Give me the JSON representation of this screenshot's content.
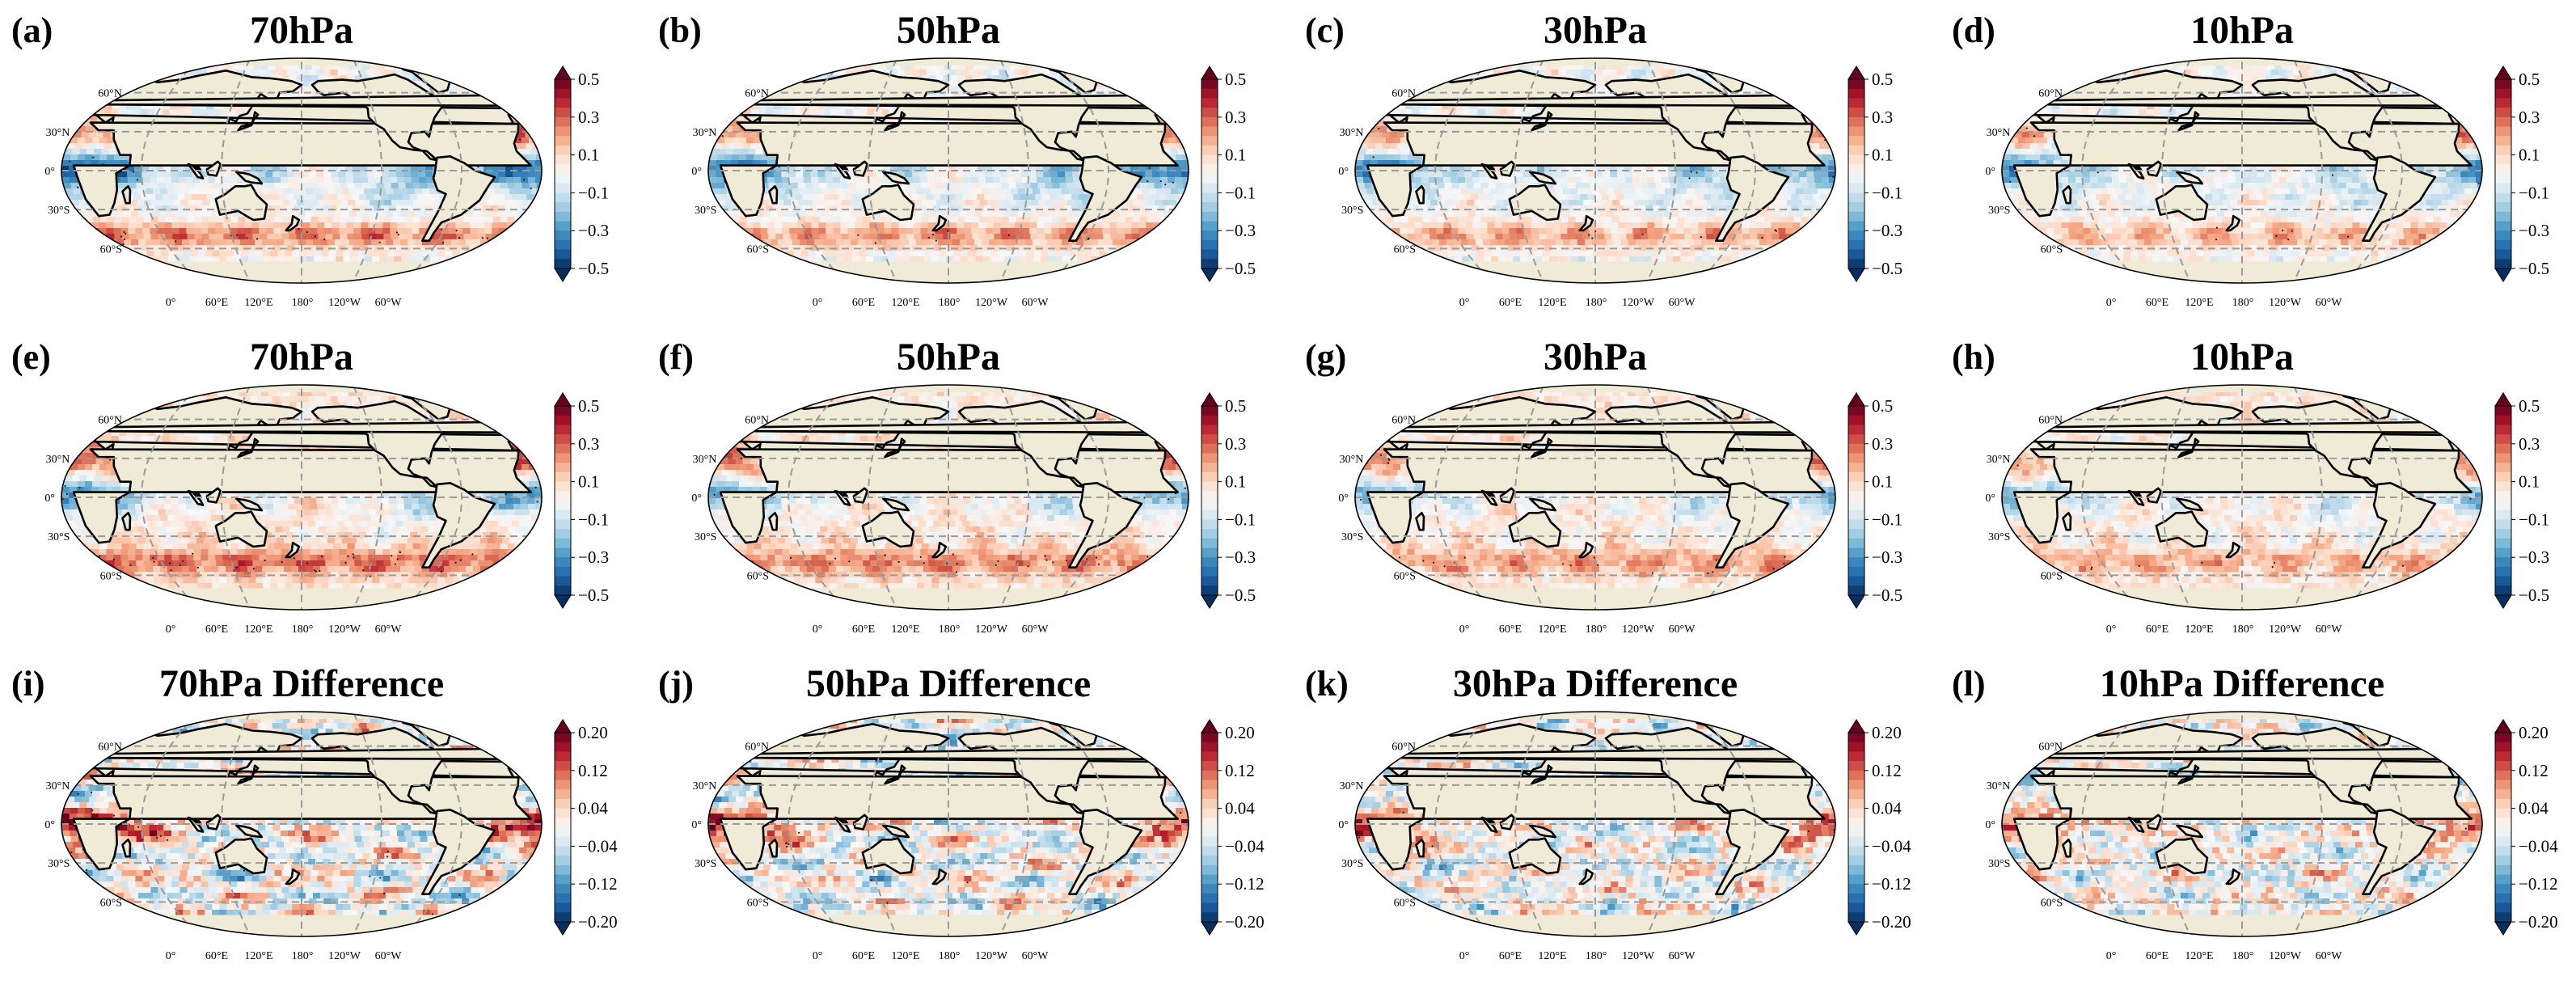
{
  "figure": {
    "colormap": {
      "name": "RdBu_r",
      "stops": [
        "#053061",
        "#2166ac",
        "#4393c3",
        "#92c5de",
        "#d1e5f0",
        "#f7f7f7",
        "#fddbc7",
        "#f4a582",
        "#d6604d",
        "#b2182b",
        "#67001f"
      ]
    },
    "land_color": "#efebd6",
    "ocean_background": "#f7f7f7",
    "graticule_color": "#9a9a9a",
    "lat_labels": [
      "60°N",
      "30°N",
      "0°",
      "30°S",
      "60°S"
    ],
    "lon_labels": [
      "0°",
      "60°E",
      "120°E",
      "180°",
      "120°W",
      "60°W"
    ]
  },
  "chart_data": [
    {
      "letter": "(a)",
      "title": "70hPa",
      "type": "heatmap",
      "colorbar": {
        "ticks": [
          "0.5",
          "0.3",
          "0.1",
          "−0.1",
          "−0.3",
          "−0.5"
        ],
        "range": [
          -0.5,
          0.5
        ]
      }
    },
    {
      "letter": "(b)",
      "title": "50hPa",
      "type": "heatmap",
      "colorbar": {
        "ticks": [
          "0.5",
          "0.3",
          "0.1",
          "−0.1",
          "−0.3",
          "−0.5"
        ],
        "range": [
          -0.5,
          0.5
        ]
      }
    },
    {
      "letter": "(c)",
      "title": "30hPa",
      "type": "heatmap",
      "colorbar": {
        "ticks": [
          "0.5",
          "0.3",
          "0.1",
          "−0.1",
          "−0.3",
          "−0.5"
        ],
        "range": [
          -0.5,
          0.5
        ]
      }
    },
    {
      "letter": "(d)",
      "title": "10hPa",
      "type": "heatmap",
      "colorbar": {
        "ticks": [
          "0.5",
          "0.3",
          "0.1",
          "−0.1",
          "−0.3",
          "−0.5"
        ],
        "range": [
          -0.5,
          0.5
        ]
      }
    },
    {
      "letter": "(e)",
      "title": "70hPa",
      "type": "heatmap",
      "colorbar": {
        "ticks": [
          "0.5",
          "0.3",
          "0.1",
          "−0.1",
          "−0.3",
          "−0.5"
        ],
        "range": [
          -0.5,
          0.5
        ]
      }
    },
    {
      "letter": "(f)",
      "title": "50hPa",
      "type": "heatmap",
      "colorbar": {
        "ticks": [
          "0.5",
          "0.3",
          "0.1",
          "−0.1",
          "−0.3",
          "−0.5"
        ],
        "range": [
          -0.5,
          0.5
        ]
      }
    },
    {
      "letter": "(g)",
      "title": "30hPa",
      "type": "heatmap",
      "colorbar": {
        "ticks": [
          "0.5",
          "0.3",
          "0.1",
          "−0.1",
          "−0.3",
          "−0.5"
        ],
        "range": [
          -0.5,
          0.5
        ]
      }
    },
    {
      "letter": "(h)",
      "title": "10hPa",
      "type": "heatmap",
      "colorbar": {
        "ticks": [
          "0.5",
          "0.3",
          "0.1",
          "−0.1",
          "−0.3",
          "−0.5"
        ],
        "range": [
          -0.5,
          0.5
        ]
      }
    },
    {
      "letter": "(i)",
      "title": "70hPa Difference",
      "type": "heatmap",
      "colorbar": {
        "ticks": [
          "0.20",
          "0.12",
          "0.04",
          "−0.04",
          "−0.12",
          "−0.20"
        ],
        "range": [
          -0.2,
          0.2
        ]
      }
    },
    {
      "letter": "(j)",
      "title": "50hPa Difference",
      "type": "heatmap",
      "colorbar": {
        "ticks": [
          "0.20",
          "0.12",
          "0.04",
          "−0.04",
          "−0.12",
          "−0.20"
        ],
        "range": [
          -0.2,
          0.2
        ]
      }
    },
    {
      "letter": "(k)",
      "title": "30hPa Difference",
      "type": "heatmap",
      "colorbar": {
        "ticks": [
          "0.20",
          "0.12",
          "0.04",
          "−0.04",
          "−0.12",
          "−0.20"
        ],
        "range": [
          -0.2,
          0.2
        ]
      }
    },
    {
      "letter": "(l)",
      "title": "10hPa Difference",
      "type": "heatmap",
      "colorbar": {
        "ticks": [
          "0.20",
          "0.12",
          "0.04",
          "−0.04",
          "−0.12",
          "−0.20"
        ],
        "range": [
          -0.2,
          0.2
        ]
      }
    }
  ]
}
